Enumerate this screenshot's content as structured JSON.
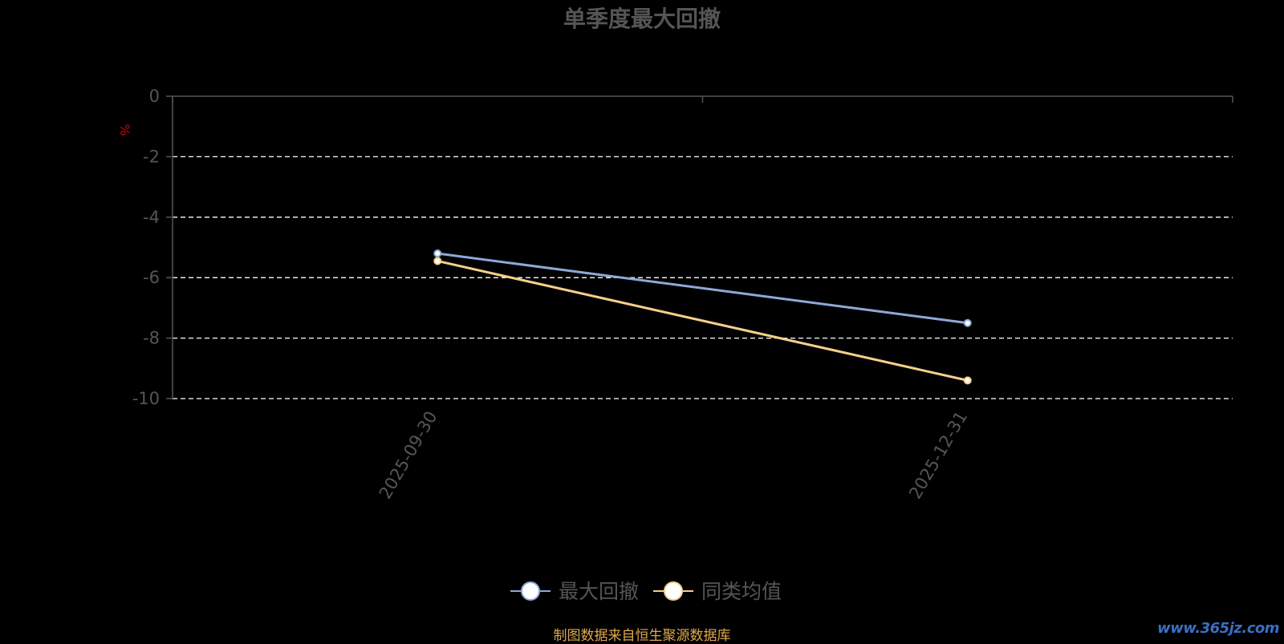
{
  "chart_data": {
    "type": "line",
    "title": "单季度最大回撤",
    "ylabel": "%",
    "categories": [
      "2025-09-30",
      "2025-12-31"
    ],
    "ylim": [
      -10,
      0
    ],
    "yticks": [
      0,
      -2,
      -4,
      -6,
      -8,
      -10
    ],
    "grid": true,
    "legend_position": "bottom-center",
    "series": [
      {
        "name": "最大回撤",
        "values": [
          -5.2,
          -7.5
        ],
        "color": "#8fa8d8"
      },
      {
        "name": "同类均值",
        "values": [
          -5.45,
          -9.4
        ],
        "color": "#f5d08a"
      }
    ]
  },
  "footer": {
    "source_note": "制图数据来自恒生聚源数据库"
  },
  "watermark": {
    "text": "www.365jz.com"
  },
  "colors": {
    "background": "#000000",
    "axis": "#555555",
    "tick_text": "#555555",
    "title": "#555555",
    "grid": "#ffffff",
    "ylabel": "#cc0000"
  }
}
